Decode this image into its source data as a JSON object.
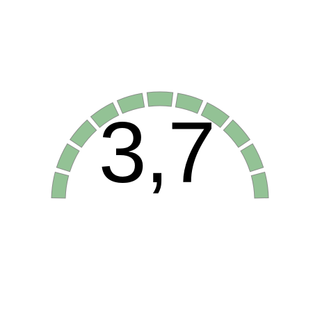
{
  "gauge": {
    "value_text": "3,7",
    "segment_count": 11,
    "filled_segments": 11,
    "fill_color": "#93c295",
    "stroke_color": "#8a8f8a",
    "empty_color": "#e6e6e6"
  }
}
